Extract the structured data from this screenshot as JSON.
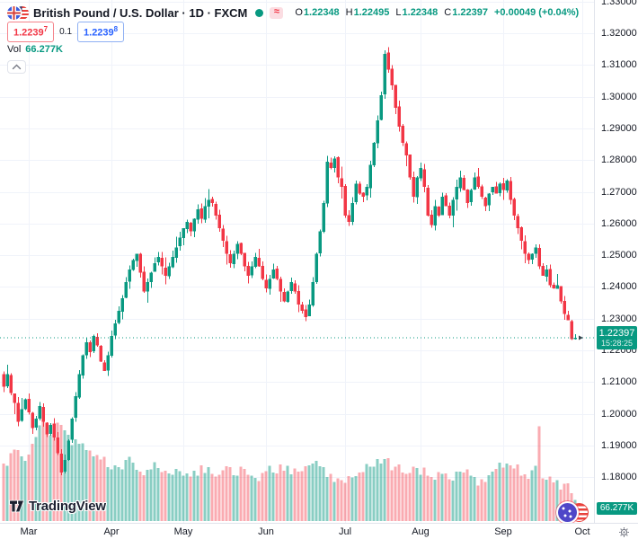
{
  "header": {
    "symbol_title": "British Pound / U.S. Dollar · 1D · FXCM",
    "market_status_dot": "open",
    "delayed_icon_glyph": "≈",
    "ohlc": {
      "o_label": "O",
      "o_value": "1.22348",
      "h_label": "H",
      "h_value": "1.22495",
      "l_label": "L",
      "l_value": "1.22348",
      "c_label": "C",
      "c_value": "1.22397",
      "change": "+0.00049 (+0.04%)"
    },
    "bid": "1.2239",
    "bid_sup": "7",
    "spread": "0.1",
    "ask": "1.2239",
    "ask_sup": "8",
    "vol_label": "Vol",
    "vol_value": "66.277K"
  },
  "price_axis": {
    "tick_labels": [
      "1.33000",
      "1.32000",
      "1.31000",
      "1.30000",
      "1.29000",
      "1.28000",
      "1.27000",
      "1.26000",
      "1.25000",
      "1.24000",
      "1.23000",
      "1.22000",
      "1.21000",
      "1.20000",
      "1.19000",
      "1.18000"
    ],
    "tick_values": [
      1.33,
      1.32,
      1.31,
      1.3,
      1.29,
      1.28,
      1.27,
      1.26,
      1.25,
      1.24,
      1.23,
      1.22,
      1.21,
      1.2,
      1.19,
      1.18
    ],
    "last_price_label": "1.22397",
    "countdown": "15:28:25",
    "volume_badge": "66.277K"
  },
  "time_axis": {
    "month_labels": [
      "Mar",
      "Apr",
      "May",
      "Jun",
      "Jul",
      "Aug",
      "Sep",
      "Oct"
    ],
    "month_days": [
      7,
      30,
      50,
      73,
      95,
      116,
      139,
      161
    ]
  },
  "watermark": {
    "brand": "TradingView"
  },
  "colors": {
    "up": "#089981",
    "down": "#f23645",
    "vol_up": "rgba(8,153,129,0.48)",
    "vol_down": "rgba(242,54,69,0.42)",
    "grid": "#f0f3fa",
    "axis_border": "#e0e3eb",
    "text_dark": "#131722",
    "text_gray": "#787b86",
    "accent_green": "#089981",
    "accent_red": "#f23645",
    "accent_blue": "#2962ff",
    "badge_bg": "#089981",
    "dot_green": "#089981",
    "pill_pink_bg": "#fbdde2"
  },
  "chart_data": {
    "type": "candlestick+volume",
    "title": "British Pound / U.S. Dollar, 1D, FXCM",
    "current_price": 1.22397,
    "ohlc_today": {
      "open": 1.22348,
      "high": 1.22495,
      "low": 1.22348,
      "close": 1.22397
    },
    "volume_today": "66.277K",
    "y_range": [
      1.175,
      1.3305
    ],
    "x_range_months": [
      "Feb",
      "Oct"
    ],
    "daily_closes": [
      1.2085,
      1.2125,
      1.2065,
      1.2035,
      1.1975,
      1.2015,
      1.2045,
      1.2005,
      1.1955,
      1.1985,
      1.2025,
      1.1975,
      1.1935,
      1.1965,
      1.1925,
      1.1875,
      1.1815,
      1.1855,
      1.1915,
      1.1985,
      1.2055,
      1.2125,
      1.2185,
      1.2225,
      1.2195,
      1.2245,
      1.2215,
      1.2165,
      1.2135,
      1.2185,
      1.2245,
      1.2285,
      1.2325,
      1.2365,
      1.2415,
      1.2455,
      1.2485,
      1.2505,
      1.2445,
      1.2385,
      1.2415,
      1.2445,
      1.2475,
      1.2495,
      1.2465,
      1.2435,
      1.2465,
      1.2495,
      1.2525,
      1.2555,
      1.2585,
      1.2605,
      1.2575,
      1.2615,
      1.2645,
      1.2615,
      1.2655,
      1.2675,
      1.2665,
      1.2625,
      1.2585,
      1.2545,
      1.2505,
      1.2475,
      1.2505,
      1.2535,
      1.2505,
      1.2465,
      1.2435,
      1.2465,
      1.2495,
      1.2465,
      1.2425,
      1.2395,
      1.2425,
      1.2455,
      1.2425,
      1.2385,
      1.2355,
      1.2385,
      1.2415,
      1.2385,
      1.2345,
      1.2325,
      1.2305,
      1.2345,
      1.2415,
      1.2505,
      1.2575,
      1.2665,
      1.2795,
      1.2775,
      1.2805,
      1.2745,
      1.2715,
      1.2625,
      1.2605,
      1.2665,
      1.2725,
      1.2695,
      1.2685,
      1.2715,
      1.2785,
      1.2855,
      1.2925,
      1.3005,
      1.3135,
      1.3085,
      1.3035,
      1.2965,
      1.2905,
      1.2855,
      1.2815,
      1.2745,
      1.2685,
      1.2745,
      1.2775,
      1.2715,
      1.2625,
      1.2595,
      1.2655,
      1.2625,
      1.2685,
      1.2655,
      1.2625,
      1.2675,
      1.2715,
      1.2745,
      1.2705,
      1.2665,
      1.2705,
      1.2745,
      1.2715,
      1.2685,
      1.2655,
      1.2695,
      1.2715,
      1.2695,
      1.2725,
      1.2705,
      1.2735,
      1.2675,
      1.2625,
      1.2585,
      1.2545,
      1.2505,
      1.2485,
      1.2505,
      1.2525,
      1.2465,
      1.2435,
      1.2455,
      1.2405,
      1.2395,
      1.2405,
      1.2355,
      1.2315,
      1.2295,
      1.2235,
      1.22397
    ],
    "volume_profile": [
      [
        0,
        62
      ],
      [
        3,
        78
      ],
      [
        6,
        66
      ],
      [
        9,
        95
      ],
      [
        11,
        118
      ],
      [
        14,
        96
      ],
      [
        16,
        108
      ],
      [
        19,
        84
      ],
      [
        22,
        88
      ],
      [
        25,
        72
      ],
      [
        28,
        70
      ],
      [
        31,
        62
      ],
      [
        34,
        66
      ],
      [
        37,
        58
      ],
      [
        40,
        56
      ],
      [
        43,
        60
      ],
      [
        46,
        52
      ],
      [
        49,
        56
      ],
      [
        52,
        50
      ],
      [
        55,
        62
      ],
      [
        58,
        54
      ],
      [
        61,
        56
      ],
      [
        64,
        50
      ],
      [
        67,
        58
      ],
      [
        70,
        48
      ],
      [
        73,
        56
      ],
      [
        76,
        52
      ],
      [
        79,
        62
      ],
      [
        82,
        56
      ],
      [
        85,
        60
      ],
      [
        88,
        62
      ],
      [
        91,
        54
      ],
      [
        94,
        44
      ],
      [
        97,
        50
      ],
      [
        100,
        56
      ],
      [
        103,
        62
      ],
      [
        106,
        68
      ],
      [
        109,
        60
      ],
      [
        112,
        54
      ],
      [
        115,
        58
      ],
      [
        118,
        52
      ],
      [
        121,
        55
      ],
      [
        124,
        48
      ],
      [
        127,
        54
      ],
      [
        130,
        50
      ],
      [
        133,
        46
      ],
      [
        136,
        56
      ],
      [
        139,
        60
      ],
      [
        142,
        58
      ],
      [
        145,
        52
      ],
      [
        147,
        56
      ],
      [
        148,
        60
      ],
      [
        149,
        105
      ],
      [
        150,
        46
      ],
      [
        152,
        50
      ],
      [
        154,
        44
      ],
      [
        156,
        40
      ],
      [
        158,
        30
      ],
      [
        159,
        24
      ]
    ],
    "grid": true,
    "legend_position": "top-left"
  }
}
